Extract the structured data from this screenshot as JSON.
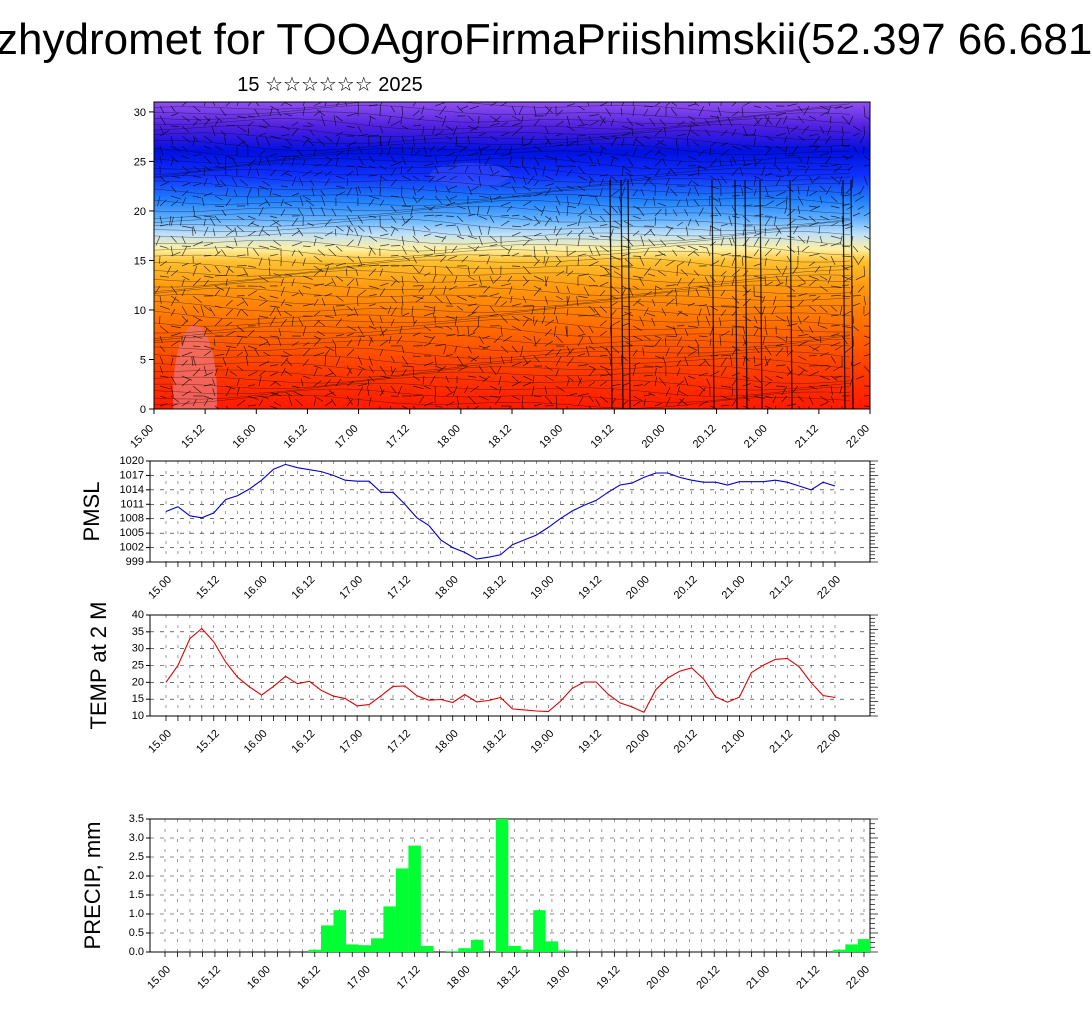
{
  "title": "zhydromet for TOOAgroFirmaPriishimskii(52.397 66.681",
  "subtitle": "15 ☆☆☆☆☆☆ 2025",
  "chart_data": [
    {
      "type": "heatmap",
      "name": "cross-section",
      "y_ticks": [
        "0",
        "5",
        "10",
        "15",
        "20",
        "25",
        "30"
      ],
      "y_range": [
        0,
        31
      ],
      "x_ticks": [
        "15.00",
        "15.12",
        "16.00",
        "16.12",
        "17.00",
        "17.12",
        "18.00",
        "18.12",
        "19.00",
        "19.12",
        "20.00",
        "20.12",
        "21.00",
        "21.12",
        "22.00"
      ],
      "colors": [
        "#f08080",
        "#ff1a00",
        "#ff6a00",
        "#ff9a10",
        "#ffc030",
        "#fff0a0",
        "#a0d0f0",
        "#2090ff",
        "#0010ff",
        "#6020e0",
        "#9050f0"
      ]
    },
    {
      "type": "line",
      "ylabel": "PMSL",
      "color": "#0000cc",
      "ylim": [
        999,
        1020
      ],
      "y_ticks": [
        "999",
        "1002",
        "1005",
        "1008",
        "1011",
        "1014",
        "1017",
        "1020"
      ],
      "x_ticks": [
        "15.00",
        "15.12",
        "16.00",
        "16.12",
        "17.00",
        "17.12",
        "18.00",
        "18.12",
        "19.00",
        "19.12",
        "20.00",
        "20.12",
        "21.00",
        "21.12",
        "22.00"
      ],
      "values": [
        1009.5,
        1010.5,
        1008.6,
        1008.2,
        1009.2,
        1012,
        1012.8,
        1014.2,
        1016,
        1018.3,
        1019.3,
        1018.6,
        1018.2,
        1017.8,
        1017,
        1016,
        1015.8,
        1015.8,
        1013.5,
        1013.5,
        1011,
        1008.2,
        1006.6,
        1003.6,
        1002,
        1001,
        999.6,
        1000,
        1000.5,
        1002.6,
        1003.6,
        1004.6,
        1006.2,
        1008,
        1009.6,
        1010.8,
        1011.8,
        1013.5,
        1015,
        1015.4,
        1016.6,
        1017.5,
        1017.5,
        1016.6,
        1016,
        1015.6,
        1015.6,
        1015,
        1015.7,
        1015.7,
        1015.7,
        1016,
        1015.6,
        1014.8,
        1014,
        1015.6,
        1014.8
      ],
      "tick_count": 57
    },
    {
      "type": "line",
      "ylabel": "TEMP at 2 M",
      "color": "#e00000",
      "ylim": [
        10,
        40
      ],
      "y_ticks": [
        "10",
        "15",
        "20",
        "25",
        "30",
        "35",
        "40"
      ],
      "x_ticks": [
        "15.00",
        "15.12",
        "16.00",
        "16.12",
        "17.00",
        "17.12",
        "18.00",
        "18.12",
        "19.00",
        "19.12",
        "20.00",
        "20.12",
        "21.00",
        "21.12",
        "22.00"
      ],
      "values": [
        20,
        25,
        33,
        36,
        32,
        26,
        21.5,
        18.6,
        16.2,
        18.8,
        21.8,
        19.6,
        20.3,
        17.6,
        15.9,
        15.2,
        13,
        13.4,
        16,
        18.8,
        18.9,
        16,
        14.7,
        14.9,
        14,
        16.4,
        14.2,
        14.6,
        15.5,
        12.1,
        11.8,
        11.5,
        11.3,
        14.3,
        18.2,
        20.1,
        20.1,
        16.5,
        13.9,
        12.7,
        11.1,
        17.8,
        21.3,
        23.3,
        24.3,
        21,
        15.7,
        14.1,
        15.6,
        22.9,
        25.1,
        26.8,
        27.1,
        24.6,
        19.9,
        16.1,
        15.5
      ],
      "tick_count": 57
    },
    {
      "type": "bar",
      "ylabel": "PRECIP, mm",
      "color": "#00ff33",
      "ylim": [
        0,
        3.5
      ],
      "y_ticks": [
        "0.0",
        "0.5",
        "1.0",
        "1.5",
        "2.0",
        "2.5",
        "3.0",
        "3.5"
      ],
      "x_ticks": [
        "15.00",
        "15.12",
        "16.00",
        "16.12",
        "17.00",
        "17.12",
        "18.00",
        "18.12",
        "19.00",
        "19.12",
        "20.00",
        "20.12",
        "21.00",
        "21.12",
        "22.00"
      ],
      "values": [
        0,
        0,
        0,
        0,
        0,
        0,
        0,
        0,
        0,
        0,
        0,
        0,
        0.06,
        0.7,
        1.1,
        0.2,
        0.18,
        0.36,
        1.2,
        2.2,
        2.8,
        0.16,
        0,
        0.02,
        0.1,
        0.32,
        0,
        3.5,
        0.16,
        0.06,
        1.1,
        0.28,
        0.04,
        0,
        0,
        0,
        0,
        0,
        0,
        0,
        0,
        0,
        0,
        0,
        0,
        0,
        0,
        0,
        0,
        0,
        0,
        0,
        0,
        0,
        0.06,
        0.2,
        0.34
      ],
      "tick_count": 57
    }
  ]
}
